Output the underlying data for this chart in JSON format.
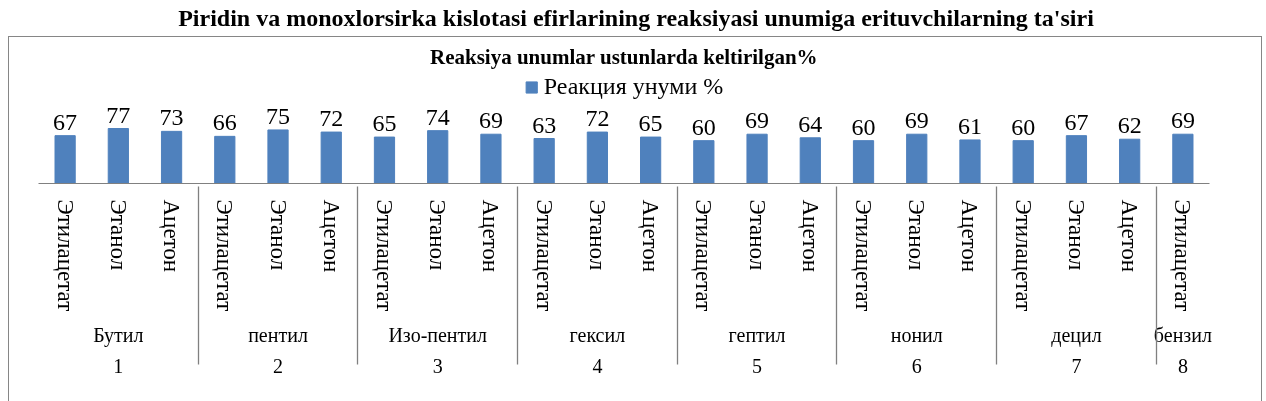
{
  "chart_data": {
    "type": "bar",
    "title": "Reaksiya unumlar ustunlarda keltirilgan%",
    "annotations": [
      "Piridin va monoxlorsirka kislotasi efirlarining reaksiyasi unumiga erituvchilarning ta'siri"
    ],
    "categories": [
      [
        "1",
        "Бутил",
        "Этилацетат"
      ],
      [
        null,
        null,
        "Этанол"
      ],
      [
        null,
        null,
        "Ацетон"
      ],
      [
        "2",
        "пентил",
        "Этилацетат"
      ],
      [
        null,
        null,
        "Этанол"
      ],
      [
        null,
        null,
        "Ацетон"
      ],
      [
        "3",
        "Изо-пентил",
        "Этилацетат"
      ],
      [
        null,
        null,
        "Этанол"
      ],
      [
        null,
        null,
        "Ацетон"
      ],
      [
        "4",
        "гексил",
        "Этилацетат"
      ],
      [
        null,
        null,
        "Этанол"
      ],
      [
        null,
        null,
        "Ацетон"
      ],
      [
        "5",
        "гептил",
        "Этилацетат"
      ],
      [
        null,
        null,
        "Этанол"
      ],
      [
        null,
        null,
        "Ацетон"
      ],
      [
        "6",
        "нонил",
        "Этилацетат"
      ],
      [
        null,
        null,
        "Этанол"
      ],
      [
        null,
        null,
        "Ацетон"
      ],
      [
        "7",
        "децил",
        "Этилацетат"
      ],
      [
        null,
        null,
        "Этанол"
      ],
      [
        null,
        null,
        "Ацетон"
      ],
      [
        "8",
        "бензил",
        "Этилацетат"
      ]
    ],
    "series": [
      {
        "name": "Реакция унуми %",
        "color": "#4f81bd",
        "values": [
          67,
          77,
          73,
          66,
          75,
          72,
          65,
          74,
          69,
          63,
          72,
          65,
          60,
          69,
          64,
          60,
          69,
          61,
          60,
          67,
          62,
          69
        ]
      }
    ],
    "data_labels": true,
    "legend": "top",
    "tick_labels": "x"
  }
}
